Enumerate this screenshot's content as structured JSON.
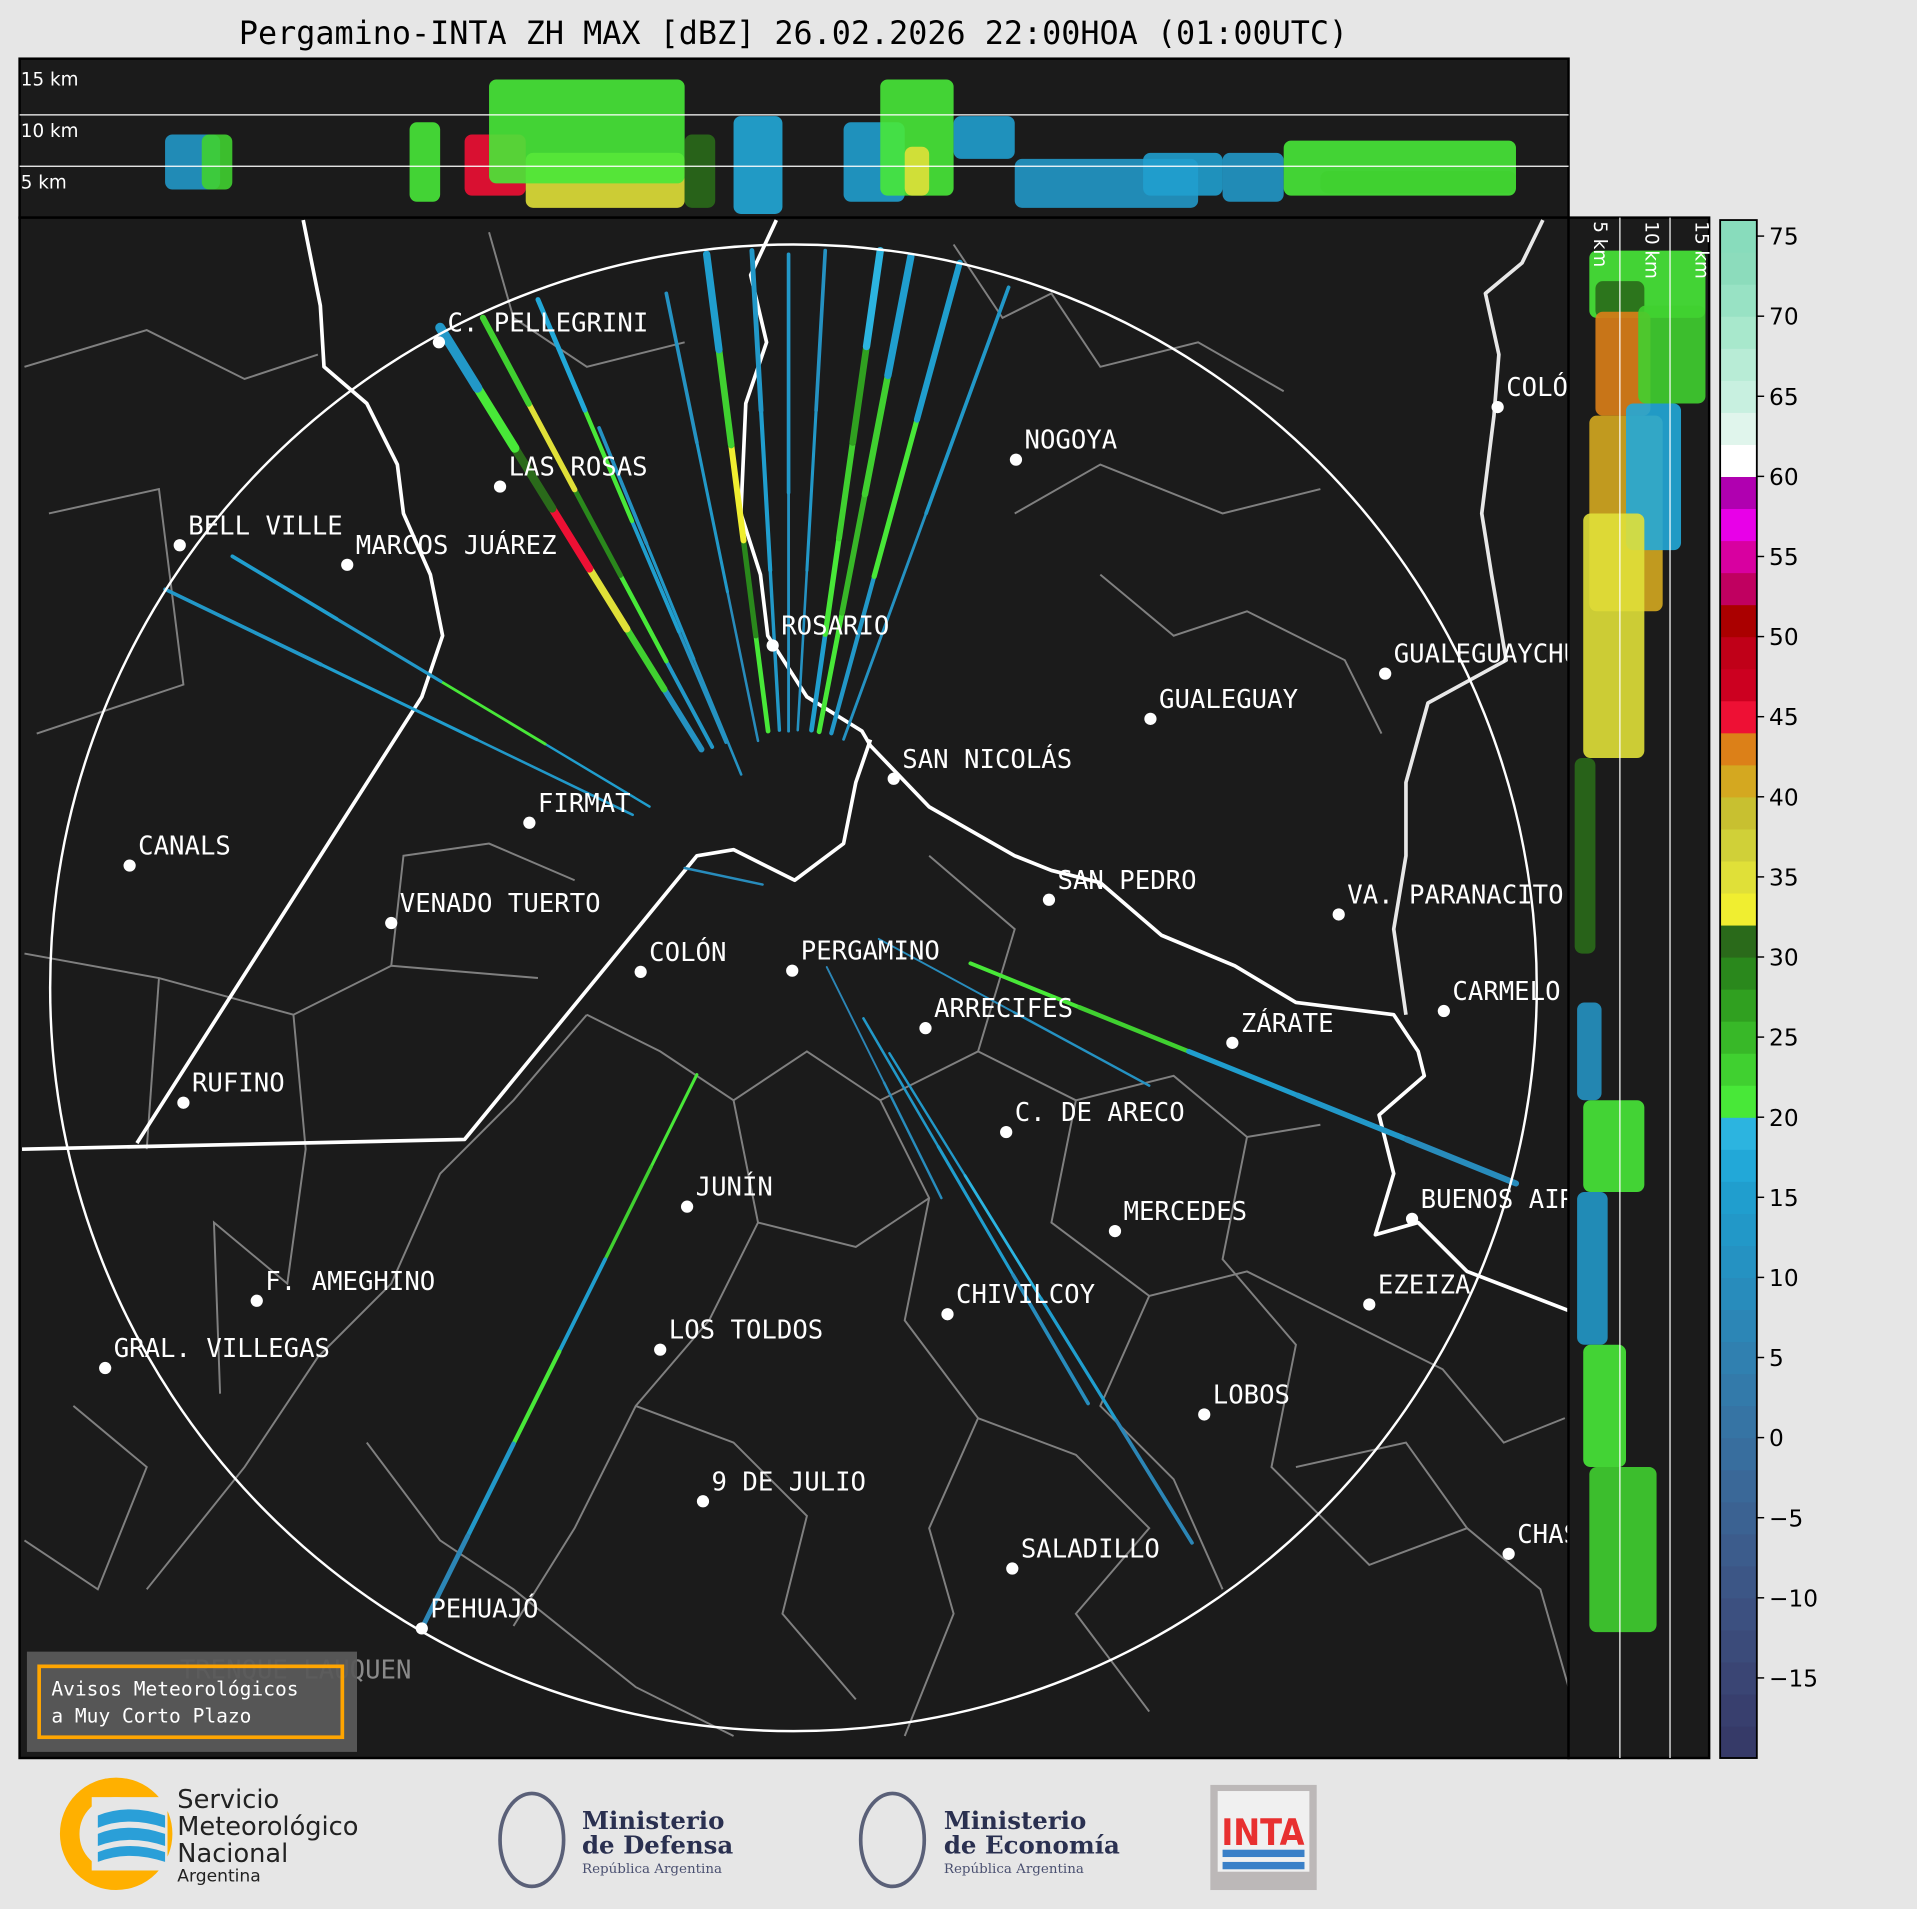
{
  "title": "Pergamino-INTA ZH MAX [dBZ] 26.02.2026 22:00HOA (01:00UTC)",
  "top_panel": {
    "height_labels": [
      "15 km",
      "10 km",
      "5 km"
    ]
  },
  "side_panel": {
    "height_labels": [
      "5 km",
      "10 km",
      "15 km"
    ]
  },
  "colorbar": {
    "unit": "dBZ",
    "range": [
      -20,
      76
    ],
    "ticks": [
      "75",
      "70",
      "65",
      "60",
      "55",
      "50",
      "45",
      "40",
      "35",
      "30",
      "25",
      "20",
      "15",
      "10",
      "5",
      "0",
      "−5",
      "−10",
      "−15"
    ],
    "band_step": 2,
    "band_colors": [
      "#363a68",
      "#383f6e",
      "#3a4574",
      "#3b4b7a",
      "#3c5080",
      "#3c5686",
      "#3c5c8c",
      "#3b6292",
      "#3a6898",
      "#386e9e",
      "#3674a4",
      "#337aaa",
      "#3080b0",
      "#2c86b6",
      "#288cbc",
      "#2592c2",
      "#2298c8",
      "#209ece",
      "#22a8d8",
      "#2cb4e0",
      "#48e838",
      "#40d030",
      "#38b828",
      "#30a020",
      "#2a881c",
      "#2a6a1a",
      "#f0ee30",
      "#e0e038",
      "#d0d038",
      "#c8c030",
      "#d4a820",
      "#dc8018",
      "#ee1034",
      "#cc0020",
      "#c00018",
      "#aa0000",
      "#c00060",
      "#d800a0",
      "#e800e8",
      "#b000b0",
      "#ffffff",
      "#e0f5ec",
      "#c8f0e0",
      "#b8ecd6",
      "#a8e8cc",
      "#98e2c4",
      "#8cdcbc",
      "#88dcbc"
    ]
  },
  "map": {
    "radar_site": "PERGAMINO",
    "cities": [
      "C. PELLEGRINI",
      "LAS ROSAS",
      "BELL VILLE",
      "MARCOS JUÁREZ",
      "NOGOYA",
      "ROSARIO",
      "GUALEGUAY",
      "GUALEGUAYCHÚ",
      "COLÓN",
      "SAN NICOLÁS",
      "FIRMAT",
      "CANALS",
      "SAN PEDRO",
      "VENADO TUERTO",
      "VA. PARANACITO",
      "COLÓN",
      "PERGAMINO",
      "CARMELO",
      "ARRECIFES",
      "ZÁRATE",
      "RUFINO",
      "C. DE ARECO",
      "JUNÍN",
      "BUENOS AIRES",
      "MERCEDES",
      "F. AMEGHINO",
      "EZEIZA",
      "CHIVILCOY",
      "LOS TOLDOS",
      "GRAL. VILLEGAS",
      "LOBOS",
      "9 DE JULIO",
      "CHASCOMÚS",
      "SALADILLO",
      "PEHUAJÓ",
      "TRENQUE LAUQUEN"
    ]
  },
  "warning_box": {
    "line1": "Avisos Meteorológicos",
    "line2": "a Muy Corto Plazo",
    "border_color": "#ffa500"
  },
  "footer": {
    "smn": {
      "line1": "Servicio",
      "line2": "Meteorológico",
      "line3": "Nacional",
      "line4": "Argentina"
    },
    "defensa": {
      "line1": "Ministerio",
      "line2": "de Defensa",
      "line3": "República Argentina"
    },
    "economia": {
      "line1": "Ministerio",
      "line2": "de Economía",
      "line3": "República Argentina"
    },
    "inta": {
      "label": "INTA"
    }
  }
}
